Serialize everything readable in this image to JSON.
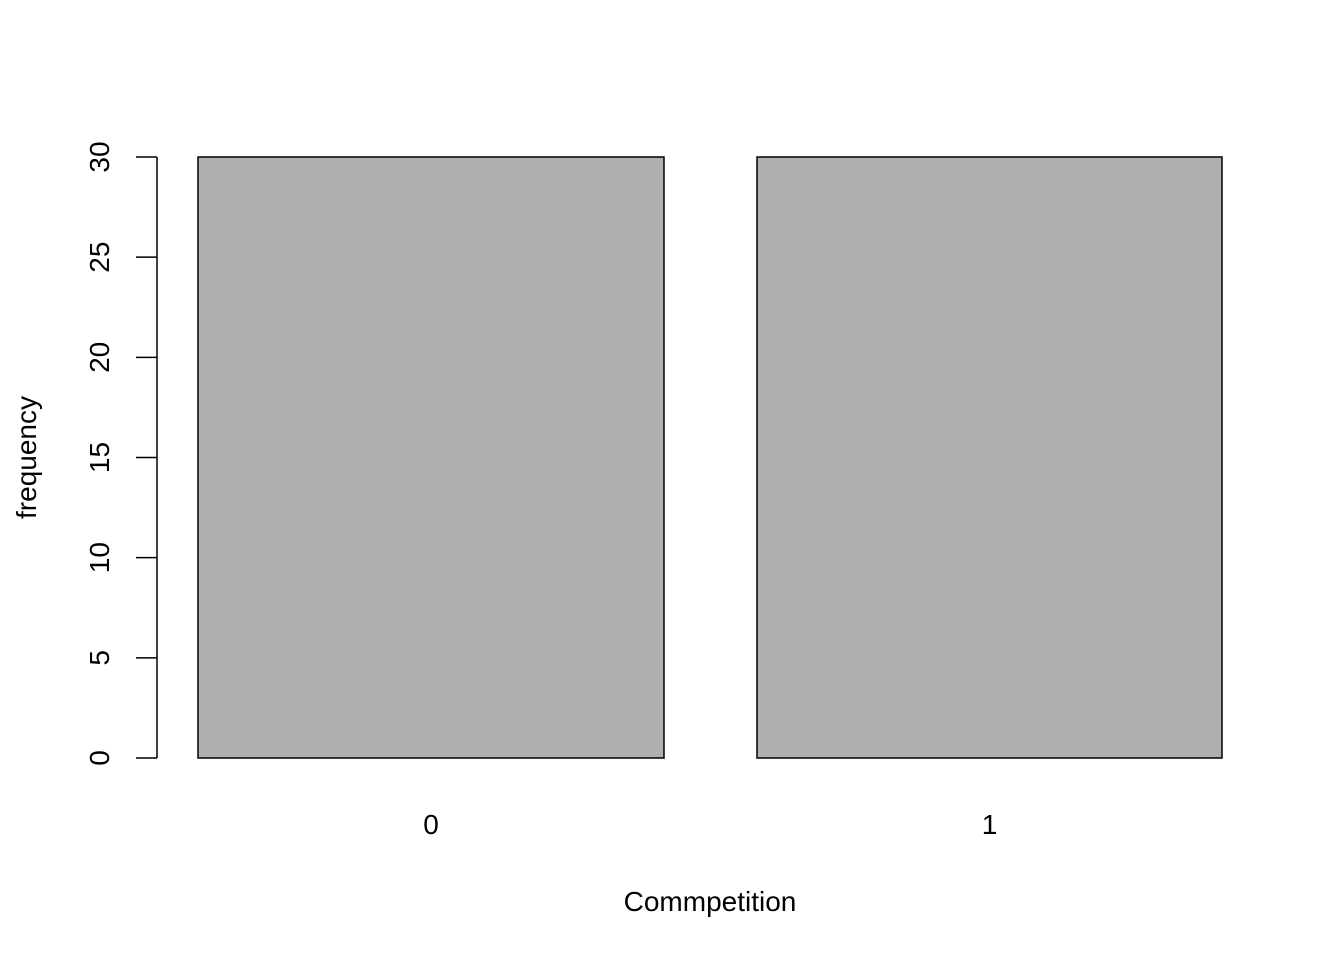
{
  "chart_data": {
    "type": "bar",
    "title": "",
    "xlabel": "Commpetition",
    "ylabel": "frequency",
    "categories": [
      "0",
      "1"
    ],
    "values": [
      30,
      30
    ],
    "ylim": [
      0,
      30
    ],
    "yticks": [
      0,
      5,
      10,
      15,
      20,
      25,
      30
    ],
    "grid": false,
    "legend": "none",
    "colors": {
      "bar_fill": "#b0b0b0",
      "bar_stroke": "#000000",
      "axis": "#000000",
      "background": "#ffffff"
    }
  }
}
